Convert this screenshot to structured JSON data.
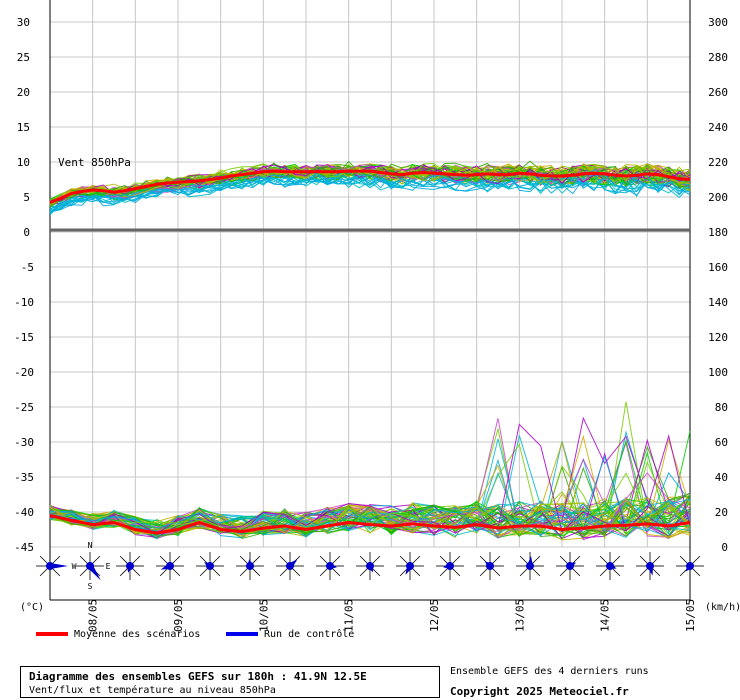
{
  "chart_data": {
    "type": "line",
    "title": "Diagramme des ensembles GEFS sur 180h : 41.9N 12.5E",
    "subtitle": "Vent/flux et température au niveau 850hPa",
    "left_unit": "(°C)",
    "right_unit": "(km/h)",
    "x_categories": [
      "08/05",
      "09/05",
      "10/05",
      "11/05",
      "12/05",
      "13/05",
      "14/05",
      "15/05"
    ],
    "top_panel": {
      "label": "Vent 850hPa",
      "left_ticks": [
        30,
        25,
        20,
        15,
        10,
        5,
        0
      ],
      "right_ticks": [
        300,
        280,
        260,
        240,
        220,
        200,
        180
      ],
      "left_range": [
        0,
        30
      ],
      "right_range": [
        180,
        300
      ]
    },
    "bottom_panel": {
      "left_ticks": [
        -5,
        -10,
        -15,
        -20,
        -25,
        -30,
        -35,
        -40,
        -45
      ],
      "right_ticks": [
        160,
        140,
        120,
        100,
        80,
        60,
        40,
        20,
        0
      ],
      "left_range": [
        -45,
        0
      ],
      "right_range": [
        0,
        180
      ]
    },
    "series": [
      {
        "name": "Moyenne des scénarios",
        "color": "#ff0000",
        "panel": "top",
        "x": [
          0,
          3,
          6,
          9,
          12,
          15,
          18,
          21,
          24,
          27,
          30,
          33,
          36,
          39,
          42,
          45,
          48,
          51,
          54,
          57,
          60,
          63,
          66,
          69,
          72,
          75,
          78,
          81,
          84,
          87,
          90,
          93,
          96,
          99,
          102,
          105,
          108,
          111,
          114,
          117,
          120,
          123,
          126,
          129,
          132,
          135,
          138,
          141,
          144,
          147,
          150,
          153,
          156,
          159,
          162,
          165,
          168,
          171,
          174,
          177,
          180
        ],
        "values": [
          4.2,
          4.8,
          5.5,
          5.8,
          6.0,
          5.9,
          5.7,
          5.9,
          6.2,
          6.5,
          6.8,
          7.0,
          7.1,
          7.2,
          7.3,
          7.5,
          7.7,
          8.0,
          8.2,
          8.4,
          8.6,
          8.7,
          8.6,
          8.6,
          8.6,
          8.6,
          8.6,
          8.6,
          8.7,
          8.7,
          8.7,
          8.5,
          8.3,
          8.2,
          8.4,
          8.5,
          8.4,
          8.3,
          8.2,
          8.1,
          8.2,
          8.3,
          8.2,
          8.2,
          8.4,
          8.3,
          8.1,
          8.0,
          8.0,
          8.1,
          8.3,
          8.4,
          8.3,
          8.1,
          8.0,
          8.1,
          8.3,
          8.2,
          7.9,
          7.6,
          7.5
        ]
      },
      {
        "name": "Moyenne des scénarios",
        "color": "#ff0000",
        "panel": "bottom",
        "x": [
          0,
          6,
          12,
          18,
          24,
          30,
          36,
          42,
          48,
          54,
          60,
          66,
          72,
          78,
          84,
          90,
          96,
          102,
          108,
          114,
          120,
          126,
          132,
          138,
          144,
          150,
          156,
          162,
          168,
          174,
          180
        ],
        "values": [
          -40.5,
          -41.2,
          -41.8,
          -41.5,
          -42.5,
          -43.0,
          -42.5,
          -41.5,
          -42.5,
          -42.8,
          -42.3,
          -42.0,
          -42.5,
          -42.0,
          -41.5,
          -41.8,
          -42.0,
          -41.7,
          -42.0,
          -42.2,
          -41.8,
          -42.3,
          -42.0,
          -42.0,
          -42.5,
          -42.3,
          -42.0,
          -41.9,
          -41.7,
          -42.0,
          -41.5
        ]
      },
      {
        "name": "Run de contrôle",
        "color": "#0000ee",
        "panel": "top",
        "x": [],
        "values": []
      }
    ],
    "wind_direction_symbols": 17,
    "grid": true
  },
  "legend": {
    "mean_label": "Moyenne des scénarios",
    "control_label": "Run de contrôle",
    "mean_color": "#ff0000",
    "control_color": "#0000ee"
  },
  "footer": {
    "title": "Diagramme des ensembles GEFS sur 180h : 41.9N 12.5E",
    "subtitle": "Vent/flux et température au niveau 850hPa",
    "ensemble_note": "Ensemble GEFS des 4 derniers runs",
    "copyright": "Copyright 2025 Meteociel.fr"
  },
  "compass": {
    "n": "N",
    "s": "S",
    "e": "E",
    "w": "W"
  }
}
